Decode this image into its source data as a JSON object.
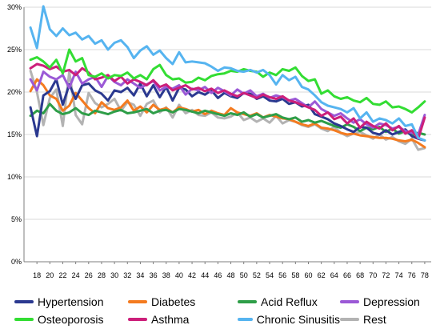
{
  "chart_data": {
    "type": "line",
    "title": "",
    "xlabel": "",
    "ylabel": "",
    "ylim": [
      0,
      30
    ],
    "yticks": [
      "0%",
      "5%",
      "10%",
      "15%",
      "20%",
      "25%",
      "30%"
    ],
    "x_tick_labels": [
      "18",
      "20",
      "22",
      "24",
      "26",
      "28",
      "30",
      "32",
      "34",
      "36",
      "38",
      "40",
      "42",
      "44",
      "46",
      "48",
      "50",
      "52",
      "54",
      "56",
      "58",
      "60",
      "62",
      "64",
      "66",
      "68",
      "70",
      "72",
      "74",
      "76",
      "78"
    ],
    "grid": "horizontal",
    "legend_position": "bottom",
    "x": [
      17,
      18,
      19,
      20,
      21,
      22,
      23,
      24,
      25,
      26,
      27,
      28,
      29,
      30,
      31,
      32,
      33,
      34,
      35,
      36,
      37,
      38,
      39,
      40,
      41,
      42,
      43,
      44,
      45,
      46,
      47,
      48,
      49,
      50,
      51,
      52,
      53,
      54,
      55,
      56,
      57,
      58,
      59,
      60,
      61,
      62,
      63,
      64,
      65,
      66,
      67,
      68,
      69,
      70,
      71,
      72,
      73,
      74,
      75,
      76,
      77,
      78
    ],
    "series": [
      {
        "name": "Hypertension",
        "color": "#2b3990",
        "values": [
          18.2,
          14.8,
          19.6,
          20.1,
          21.5,
          18.5,
          20.9,
          19.2,
          20.8,
          21.0,
          20.2,
          19.8,
          19.0,
          20.2,
          20.0,
          20.5,
          19.6,
          21.0,
          19.5,
          20.8,
          19.4,
          20.6,
          19.0,
          20.5,
          20.3,
          19.5,
          20.0,
          19.7,
          20.2,
          19.3,
          19.9,
          19.5,
          19.3,
          19.9,
          19.8,
          19.2,
          19.5,
          19.0,
          18.9,
          19.2,
          18.6,
          18.8,
          18.3,
          18.5,
          17.4,
          17.1,
          16.8,
          16.3,
          16.0,
          15.6,
          15.3,
          15.9,
          15.8,
          15.2,
          15.0,
          15.5,
          15.0,
          15.3,
          15.6,
          14.8,
          14.5,
          14.3
        ]
      },
      {
        "name": "Diabetes",
        "color": "#f47b20",
        "values": [
          20.1,
          21.5,
          20.8,
          19.6,
          19.2,
          17.8,
          18.4,
          19.9,
          19.0,
          18.1,
          17.5,
          18.8,
          18.1,
          17.9,
          18.2,
          19.0,
          17.8,
          18.3,
          17.6,
          18.5,
          17.9,
          18.1,
          17.6,
          18.2,
          18.0,
          17.7,
          17.9,
          17.4,
          17.8,
          17.5,
          17.3,
          18.1,
          17.6,
          17.4,
          17.2,
          17.5,
          17.0,
          17.3,
          17.1,
          16.9,
          16.8,
          16.5,
          16.2,
          16.0,
          16.3,
          15.8,
          15.7,
          15.5,
          15.2,
          15.0,
          15.1,
          14.9,
          14.8,
          14.7,
          14.6,
          14.6,
          14.5,
          14.3,
          14.2,
          14.4,
          14.0,
          13.5
        ]
      },
      {
        "name": "Acid Reflux",
        "color": "#2e9e48",
        "values": [
          17.2,
          17.8,
          17.5,
          18.6,
          17.8,
          17.4,
          17.6,
          18.1,
          17.5,
          17.3,
          17.8,
          17.6,
          17.4,
          17.7,
          17.9,
          17.5,
          17.6,
          17.8,
          18.0,
          17.5,
          17.8,
          17.9,
          17.6,
          18.0,
          17.9,
          17.7,
          17.5,
          17.8,
          17.6,
          17.4,
          17.2,
          17.5,
          17.3,
          17.6,
          17.1,
          17.4,
          17.0,
          17.2,
          17.4,
          17.0,
          16.8,
          17.0,
          16.5,
          16.7,
          16.4,
          16.6,
          16.3,
          16.0,
          15.8,
          16.2,
          15.9,
          15.4,
          15.8,
          15.6,
          15.9,
          15.3,
          15.7,
          15.1,
          15.4,
          14.9,
          15.2,
          15.0
        ]
      },
      {
        "name": "Depression",
        "color": "#9b59d6",
        "values": [
          21.5,
          20.2,
          22.4,
          21.8,
          21.5,
          22.0,
          20.5,
          22.4,
          21.0,
          21.5,
          21.8,
          20.6,
          21.9,
          21.2,
          20.8,
          21.5,
          21.0,
          20.5,
          20.9,
          21.3,
          20.2,
          20.6,
          20.4,
          20.8,
          19.7,
          20.4,
          20.2,
          20.6,
          19.9,
          20.5,
          20.1,
          19.6,
          20.3,
          19.8,
          20.2,
          19.5,
          19.8,
          19.3,
          19.6,
          19.4,
          19.0,
          19.2,
          18.7,
          18.2,
          18.9,
          18.0,
          17.6,
          17.2,
          17.5,
          16.9,
          16.4,
          16.8,
          16.2,
          15.8,
          16.3,
          16.1,
          15.7,
          15.9,
          15.4,
          15.2,
          15.0,
          17.3
        ]
      },
      {
        "name": "Osteoporosis",
        "color": "#33dd33",
        "values": [
          23.8,
          24.1,
          23.6,
          22.9,
          23.8,
          22.2,
          25.0,
          23.6,
          24.0,
          22.0,
          21.8,
          22.2,
          21.6,
          22.0,
          21.9,
          22.3,
          21.6,
          22.0,
          21.5,
          22.7,
          23.2,
          22.0,
          21.5,
          21.6,
          21.1,
          21.2,
          21.7,
          21.4,
          21.9,
          22.1,
          22.2,
          22.5,
          22.4,
          22.7,
          22.5,
          22.4,
          21.8,
          22.3,
          22.0,
          22.7,
          22.5,
          22.9,
          21.9,
          21.3,
          21.5,
          19.8,
          20.2,
          19.5,
          19.2,
          19.4,
          19.0,
          18.8,
          19.3,
          18.6,
          18.5,
          18.9,
          18.2,
          18.3,
          18.0,
          17.6,
          18.2,
          18.9
        ]
      },
      {
        "name": "Asthma",
        "color": "#cc1f7a",
        "values": [
          22.8,
          23.3,
          23.1,
          22.7,
          23.0,
          22.4,
          22.6,
          22.0,
          22.8,
          22.3,
          21.5,
          21.7,
          22.0,
          21.3,
          21.8,
          21.0,
          21.5,
          21.2,
          20.8,
          21.4,
          20.6,
          20.9,
          20.2,
          20.5,
          20.8,
          20.3,
          20.5,
          20.1,
          20.4,
          19.9,
          20.2,
          19.8,
          19.5,
          19.9,
          19.6,
          19.3,
          19.7,
          19.4,
          19.2,
          19.5,
          19.0,
          18.8,
          18.5,
          18.2,
          17.9,
          17.2,
          17.6,
          16.8,
          17.1,
          16.3,
          16.9,
          15.8,
          16.5,
          16.0,
          15.7,
          16.3,
          15.5,
          16.0,
          15.1,
          15.5,
          14.5,
          17.0
        ]
      },
      {
        "name": "Chronic Sinusitis",
        "color": "#56b4f0",
        "values": [
          27.6,
          25.2,
          30.1,
          27.4,
          26.6,
          27.5,
          26.7,
          27.0,
          26.2,
          26.6,
          25.7,
          26.1,
          25.0,
          25.8,
          26.1,
          25.3,
          24.0,
          24.9,
          25.4,
          24.4,
          24.9,
          24.0,
          23.3,
          24.7,
          23.5,
          23.6,
          23.5,
          23.4,
          23.0,
          22.5,
          22.9,
          22.8,
          22.5,
          22.4,
          22.6,
          22.3,
          22.6,
          22.0,
          20.9,
          22.0,
          21.4,
          21.8,
          20.6,
          20.3,
          19.6,
          18.8,
          18.4,
          18.2,
          18.0,
          17.6,
          18.1,
          16.9,
          17.6,
          16.5,
          16.9,
          16.7,
          16.3,
          16.9,
          16.0,
          16.2,
          14.6,
          14.3
        ]
      },
      {
        "name": "Rest",
        "color": "#b3b3b3",
        "values": [
          22.5,
          20.0,
          16.1,
          19.3,
          20.3,
          16.0,
          22.4,
          17.3,
          16.2,
          19.9,
          18.7,
          18.2,
          18.6,
          19.2,
          17.8,
          18.8,
          18.5,
          17.2,
          18.6,
          19.0,
          17.6,
          18.2,
          17.0,
          18.5,
          17.5,
          17.9,
          17.3,
          17.2,
          17.6,
          17.0,
          16.9,
          17.1,
          17.6,
          16.7,
          17.0,
          16.5,
          16.9,
          16.4,
          17.2,
          16.3,
          16.7,
          16.5,
          16.1,
          15.9,
          16.2,
          15.7,
          15.4,
          15.9,
          15.2,
          14.8,
          15.1,
          15.3,
          14.9,
          14.5,
          15.0,
          14.4,
          14.7,
          14.2,
          13.9,
          14.5,
          13.2,
          13.4
        ]
      }
    ]
  }
}
